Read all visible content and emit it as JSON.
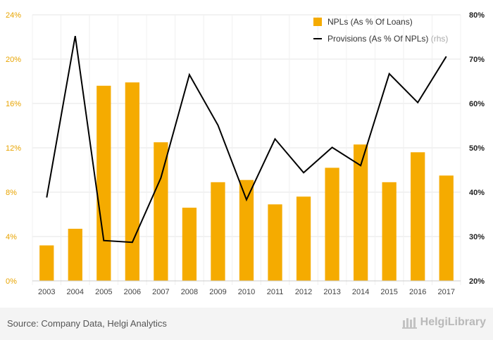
{
  "chart_data": {
    "type": "bar",
    "categories": [
      "2003",
      "2004",
      "2005",
      "2006",
      "2007",
      "2008",
      "2009",
      "2010",
      "2011",
      "2012",
      "2013",
      "2014",
      "2015",
      "2016",
      "2017"
    ],
    "series": [
      {
        "name": "NPLs (As % Of Loans)",
        "type": "bar",
        "axis": "left",
        "color": "#f5ab00",
        "values": [
          3.2,
          4.7,
          17.6,
          17.9,
          12.5,
          6.6,
          8.9,
          9.1,
          6.9,
          7.6,
          10.2,
          12.3,
          8.9,
          11.6,
          9.5
        ]
      },
      {
        "name": "Provisions (As % Of NPLs)",
        "type": "line",
        "axis": "right",
        "color": "#000000",
        "values": [
          38.8,
          75.2,
          29.1,
          28.7,
          43.2,
          66.5,
          55.1,
          38.3,
          52.0,
          44.4,
          50.1,
          46.0,
          66.7,
          60.2,
          70.6
        ]
      }
    ],
    "y_left": {
      "ylim": [
        0,
        24
      ],
      "ticks": [
        0,
        4,
        8,
        12,
        16,
        20,
        24
      ],
      "tick_labels": [
        "0%",
        "4%",
        "8%",
        "12%",
        "16%",
        "20%",
        "24%"
      ]
    },
    "y_right": {
      "ylim": [
        20,
        80
      ],
      "ticks": [
        20,
        30,
        40,
        50,
        60,
        70,
        80
      ],
      "tick_labels": [
        "20%",
        "30%",
        "40%",
        "50%",
        "60%",
        "70%",
        "80%"
      ]
    },
    "legend": {
      "placement": "top-right",
      "rhs_note": "(rhs)"
    },
    "grid": true
  },
  "footer": {
    "source": "Source: Company Data, Helgi Analytics",
    "brand": "HelgiLibrary"
  }
}
